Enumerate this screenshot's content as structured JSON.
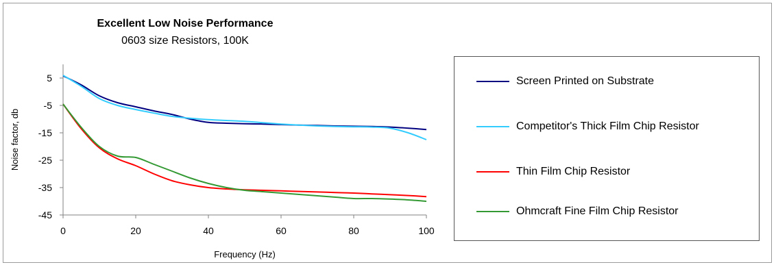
{
  "chart_data": {
    "type": "line",
    "title": "Excellent Low Noise Performance",
    "subtitle": "0603 size Resistors, 100K",
    "xlabel": "Frequency (Hz)",
    "ylabel": "Noise factor, db",
    "xlim": [
      0,
      100
    ],
    "ylim": [
      -45,
      10
    ],
    "xticks": [
      0,
      20,
      40,
      60,
      80,
      100
    ],
    "yticks": [
      5,
      -5,
      -15,
      -25,
      -35,
      -45
    ],
    "grid": false,
    "legend_position": "right",
    "series": [
      {
        "name": "Screen Printed on Substrate",
        "color": "#000080",
        "x": [
          0,
          5,
          10,
          15,
          20,
          25,
          30,
          35,
          40,
          45,
          50,
          55,
          60,
          65,
          70,
          75,
          80,
          85,
          90,
          95,
          100
        ],
        "y": [
          5.8,
          2.5,
          -1.5,
          -4.0,
          -5.5,
          -7.0,
          -8.3,
          -10.0,
          -11.2,
          -11.5,
          -11.7,
          -11.8,
          -12.0,
          -12.2,
          -12.3,
          -12.5,
          -12.6,
          -12.7,
          -12.9,
          -13.3,
          -13.8
        ]
      },
      {
        "name": "Competitor's Thick Film Chip Resistor",
        "color": "#33ccff",
        "x": [
          0,
          5,
          10,
          15,
          20,
          25,
          30,
          35,
          40,
          45,
          50,
          55,
          60,
          65,
          70,
          75,
          80,
          85,
          90,
          95,
          100
        ],
        "y": [
          6.0,
          2.0,
          -2.5,
          -5.0,
          -6.5,
          -7.8,
          -9.0,
          -9.7,
          -10.2,
          -10.5,
          -10.8,
          -11.3,
          -11.8,
          -12.2,
          -12.5,
          -12.7,
          -12.8,
          -12.9,
          -13.3,
          -15.0,
          -17.5
        ]
      },
      {
        "name": "Thin Film Chip Resistor",
        "color": "#ff0000",
        "x": [
          0,
          5,
          10,
          15,
          20,
          25,
          30,
          35,
          40,
          45,
          50,
          55,
          60,
          65,
          70,
          75,
          80,
          85,
          90,
          95,
          100
        ],
        "y": [
          -4.5,
          -13.5,
          -20.5,
          -24.5,
          -27.0,
          -30.0,
          -32.5,
          -34.0,
          -35.0,
          -35.5,
          -35.8,
          -36.0,
          -36.2,
          -36.4,
          -36.6,
          -36.8,
          -37.0,
          -37.3,
          -37.6,
          -37.9,
          -38.3
        ]
      },
      {
        "name": "Ohmcraft Fine Film Chip Resistor",
        "color": "#339933",
        "x": [
          0,
          5,
          10,
          15,
          20,
          25,
          30,
          35,
          40,
          45,
          50,
          55,
          60,
          65,
          70,
          75,
          80,
          85,
          90,
          95,
          100
        ],
        "y": [
          -4.5,
          -13.0,
          -20.0,
          -23.5,
          -24.0,
          -26.5,
          -29.0,
          -31.5,
          -33.5,
          -35.0,
          -36.0,
          -36.5,
          -37.0,
          -37.5,
          -38.0,
          -38.5,
          -39.0,
          -39.0,
          -39.2,
          -39.5,
          -40.0
        ]
      }
    ]
  }
}
